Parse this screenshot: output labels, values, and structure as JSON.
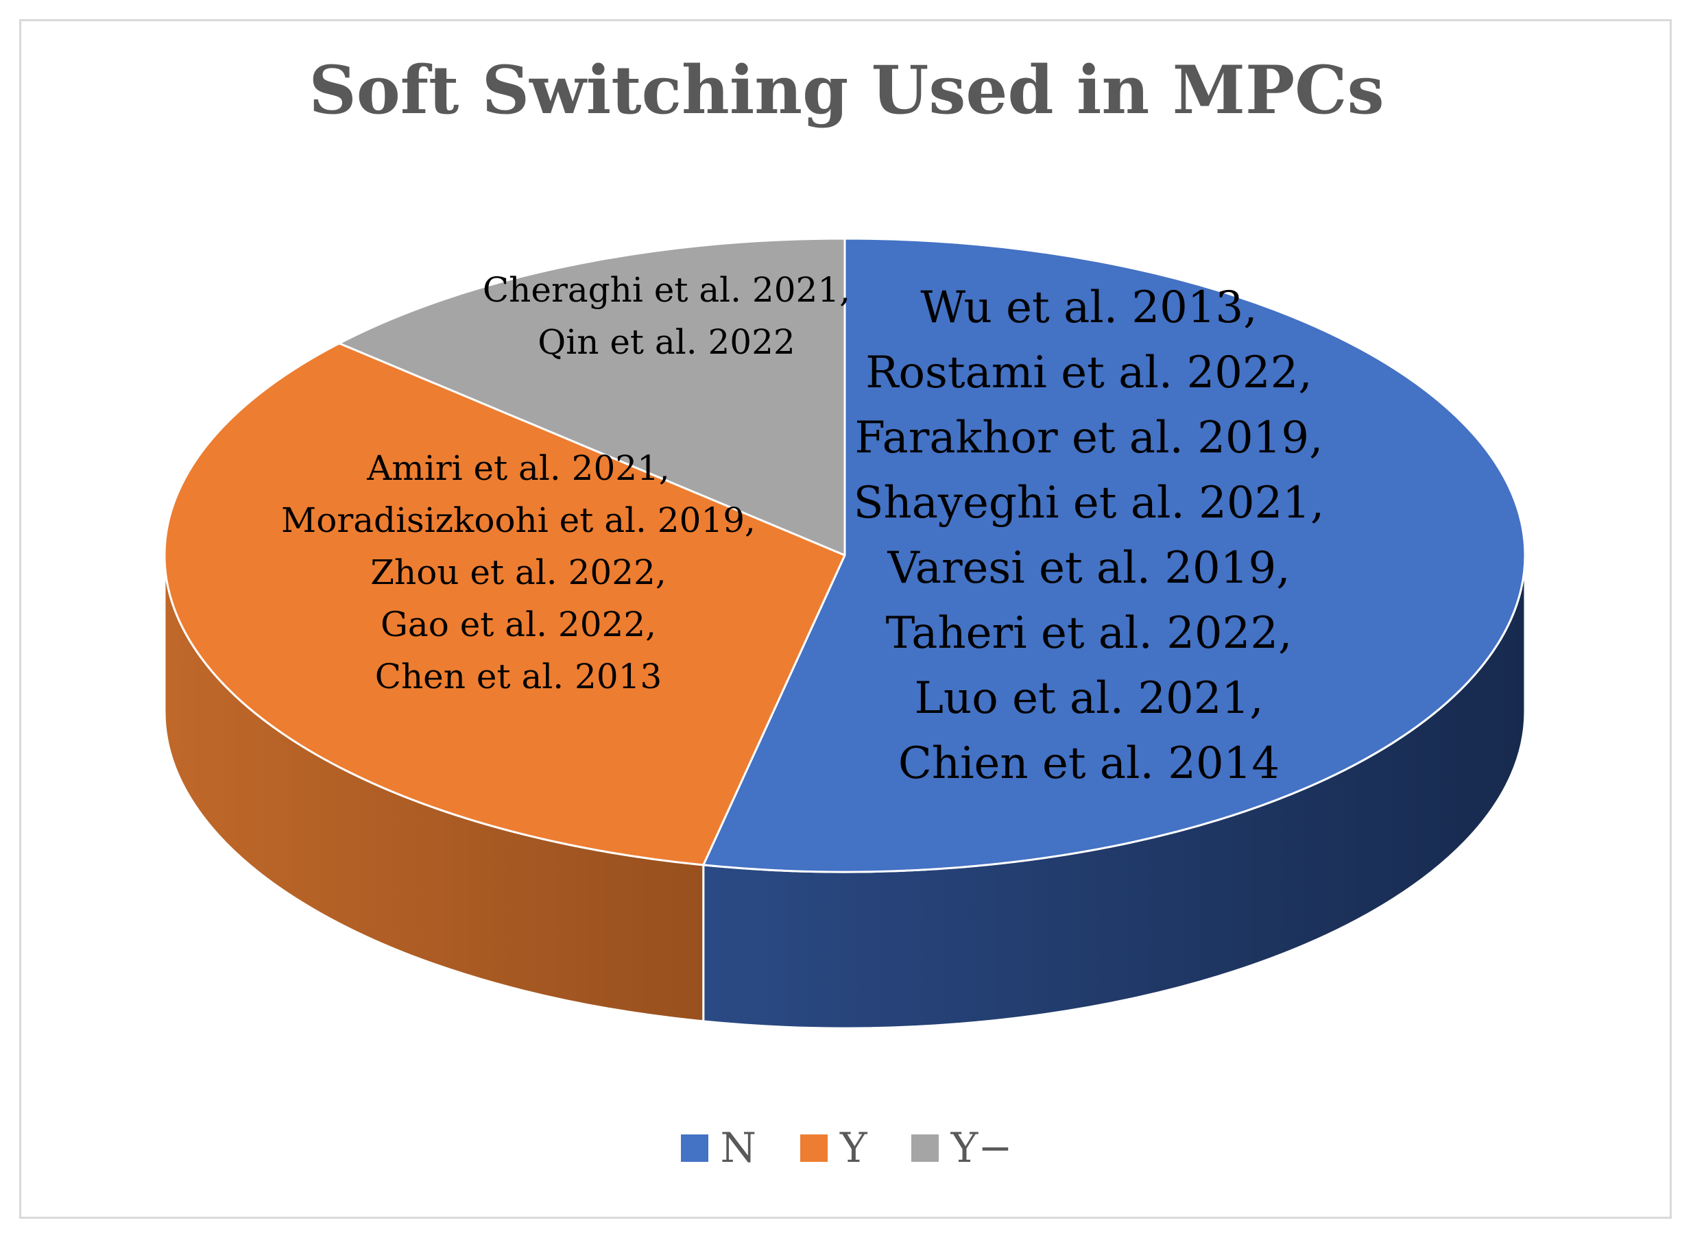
{
  "chart_data": {
    "type": "pie",
    "title": "Soft Switching Used in MPCs",
    "categories": [
      "N",
      "Y",
      "Y−"
    ],
    "values": [
      8,
      5,
      2
    ],
    "colors": [
      "#4472c4",
      "#ed7d31",
      "#a5a5a5"
    ],
    "side_colors": [
      "#1f3660",
      "#a8561c",
      "#7f7f7f"
    ],
    "legend_position": "bottom",
    "slice_labels": [
      [
        "Wu et al. 2013,",
        "Rostami et al. 2022,",
        "Farakhor et al. 2019,",
        "Shayeghi et al. 2021,",
        "Varesi et al. 2019,",
        "Taheri et al. 2022,",
        "Luo et al. 2021,",
        "Chien et al. 2014"
      ],
      [
        "Amiri et al. 2021,",
        "Moradisizkoohi et al. 2019,",
        "Zhou et al. 2022,",
        "Gao et al. 2022,",
        "Chen et al. 2013"
      ],
      [
        "Cheraghi et al. 2021,",
        "Qin et al. 2022"
      ]
    ]
  }
}
